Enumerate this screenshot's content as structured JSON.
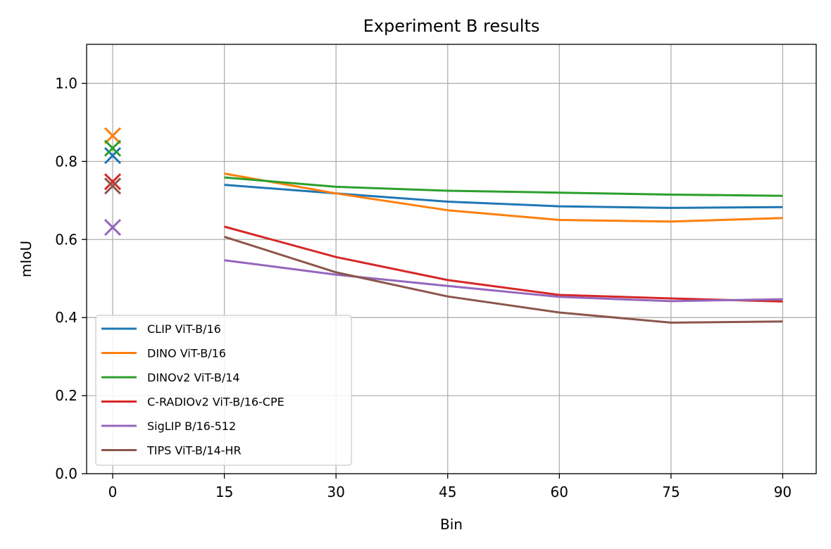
{
  "chart_data": {
    "type": "line",
    "title": "Experiment B results",
    "xlabel": "Bin",
    "ylabel": "mIoU",
    "xlim": [
      -3.5,
      94.5
    ],
    "ylim": [
      0,
      1.1
    ],
    "xticks": [
      0,
      15,
      30,
      45,
      60,
      75,
      90
    ],
    "yticks": [
      0.0,
      0.2,
      0.4,
      0.6,
      0.8,
      1.0
    ],
    "xtick_labels": [
      "0",
      "15",
      "30",
      "45",
      "60",
      "75",
      "90"
    ],
    "ytick_labels": [
      "0.0",
      "0.2",
      "0.4",
      "0.6",
      "0.8",
      "1.0"
    ],
    "grid": true,
    "legend_position": "lower-left",
    "x": [
      15,
      30,
      45,
      60,
      75,
      90
    ],
    "series": [
      {
        "name": "CLIP ViT-B/16",
        "color": "#1f77b4",
        "values": [
          0.74,
          0.718,
          0.697,
          0.685,
          0.681,
          0.683
        ],
        "marker_x": 0,
        "marker_y": 0.815
      },
      {
        "name": "DINO ViT-B/16",
        "color": "#ff7f0e",
        "values": [
          0.769,
          0.718,
          0.675,
          0.65,
          0.646,
          0.655
        ],
        "marker_x": 0,
        "marker_y": 0.866
      },
      {
        "name": "DINOv2 ViT-B/14",
        "color": "#2ca02c",
        "values": [
          0.759,
          0.735,
          0.725,
          0.72,
          0.715,
          0.712
        ],
        "marker_x": 0,
        "marker_y": 0.834
      },
      {
        "name": "C-RADIOv2 ViT-B/16-CPE",
        "color": "#d62728",
        "values": [
          0.633,
          0.555,
          0.496,
          0.458,
          0.449,
          0.441
        ],
        "marker_x": 0,
        "marker_y": 0.748
      },
      {
        "name": "SigLIP B/16-512",
        "color": "#9467bd",
        "values": [
          0.547,
          0.51,
          0.481,
          0.453,
          0.442,
          0.447
        ],
        "marker_x": 0,
        "marker_y": 0.631
      },
      {
        "name": "TIPS ViT-B/14-HR",
        "color": "#8c564b",
        "values": [
          0.607,
          0.516,
          0.454,
          0.413,
          0.387,
          0.39
        ],
        "marker_x": 0,
        "marker_y": 0.737
      }
    ]
  }
}
